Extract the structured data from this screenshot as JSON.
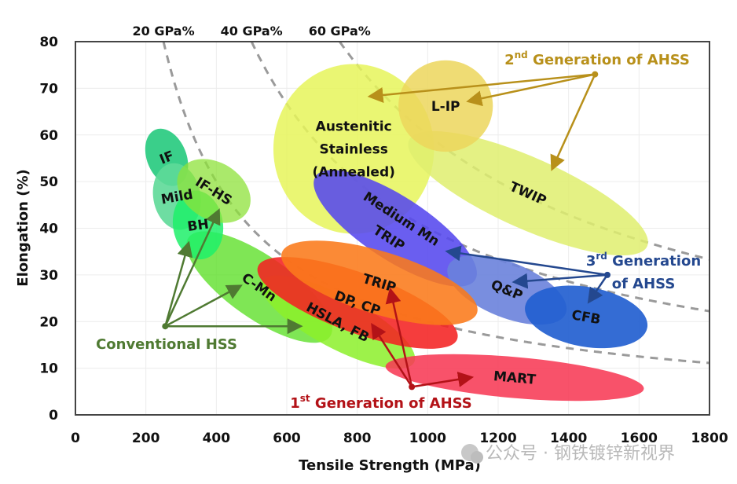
{
  "chart_data": {
    "type": "scatter",
    "title": "",
    "xlabel": "Tensile Strength (MPa)",
    "ylabel": "Elongation (%)",
    "xlim": [
      0,
      1800
    ],
    "ylim": [
      0,
      80
    ],
    "xticks": [
      "0",
      "200",
      "400",
      "600",
      "800",
      "1000",
      "1200",
      "1400",
      "1600",
      "1800"
    ],
    "yticks": [
      "0",
      "10",
      "20",
      "30",
      "40",
      "50",
      "60",
      "70",
      "80"
    ],
    "grid": true,
    "iso_curves": [
      {
        "label": "20 GPa%",
        "product": 20000
      },
      {
        "label": "40 GPa%",
        "product": 40000
      },
      {
        "label": "60 GPa%",
        "product": 60000
      }
    ],
    "regions": [
      {
        "name": "austenitic-stainless",
        "label": [
          "Austenitic",
          "Stainless",
          "(Annealed)"
        ],
        "ts": 790,
        "el": 57,
        "rts": 228,
        "rel": 18.2,
        "angle": 0,
        "color": "#e6f55a",
        "opacity": 0.85,
        "group": "2nd"
      },
      {
        "name": "twip",
        "label": [
          "TWIP"
        ],
        "ts": 1285,
        "el": 47.5,
        "rts": 370,
        "rel": 7.6,
        "angle": 24,
        "color": "#dfee6e",
        "opacity": 0.85,
        "group": "2nd"
      },
      {
        "name": "l-ip",
        "label": [
          "L-IP"
        ],
        "ts": 1051,
        "el": 66.2,
        "rts": 134,
        "rel": 9.8,
        "angle": 0,
        "color": "#ecd65c",
        "opacity": 0.85,
        "group": "2nd"
      },
      {
        "name": "medium-mn-trip",
        "label": [
          "Medium Mn",
          "TRIP"
        ],
        "ts": 908,
        "el": 40,
        "rts": 270,
        "rel": 6.8,
        "angle": 33,
        "color": "#5548ee",
        "opacity": 0.88,
        "group": "3rd"
      },
      {
        "name": "q-and-p",
        "label": [
          "Q&P"
        ],
        "ts": 1225,
        "el": 26.8,
        "rts": 180,
        "rel": 5.9,
        "angle": 22,
        "color": "#6a82dc",
        "opacity": 0.9,
        "group": "3rd"
      },
      {
        "name": "cfb",
        "label": [
          "CFB"
        ],
        "ts": 1450,
        "el": 21,
        "rts": 176,
        "rel": 6.4,
        "angle": 10,
        "color": "#2360d0",
        "opacity": 0.92,
        "group": "3rd"
      },
      {
        "name": "c-mn",
        "label": [
          "C-Mn"
        ],
        "ts": 522,
        "el": 27.4,
        "rts": 245,
        "rel": 6.7,
        "angle": 35,
        "color": "#5fe02a",
        "opacity": 0.8,
        "group": "conventional"
      },
      {
        "name": "hsla-fb",
        "label": [
          "HSLA, FB"
        ],
        "ts": 745,
        "el": 19.9,
        "rts": 245,
        "rel": 5.6,
        "angle": 28,
        "color": "#8cf02a",
        "opacity": 0.85,
        "group": "conventional"
      },
      {
        "name": "mart",
        "label": [
          "MART"
        ],
        "ts": 1247,
        "el": 8,
        "rts": 368,
        "rel": 4.4,
        "angle": 5,
        "color": "#f73a55",
        "opacity": 0.88,
        "group": "1st"
      },
      {
        "name": "dp-cp",
        "label": [
          "DP, CP"
        ],
        "ts": 801,
        "el": 24,
        "rts": 301,
        "rel": 6.4,
        "angle": 20,
        "color": "#f42222",
        "opacity": 0.88,
        "group": "1st"
      },
      {
        "name": "trip",
        "label": [
          "TRIP"
        ],
        "ts": 863,
        "el": 28.3,
        "rts": 290,
        "rel": 6.7,
        "angle": 17,
        "color": "#fb7a1a",
        "opacity": 0.88,
        "group": "1st"
      },
      {
        "name": "if",
        "label": [
          "IF"
        ],
        "ts": 259,
        "el": 55.2,
        "rts": 56,
        "rel": 6.4,
        "angle": -22,
        "color": "#2fcc84",
        "opacity": 0.95,
        "group": "conventional"
      },
      {
        "name": "mild",
        "label": [
          "Mild"
        ],
        "ts": 288,
        "el": 46.8,
        "rts": 67,
        "rel": 7.2,
        "angle": -10,
        "color": "#5ed998",
        "opacity": 0.9,
        "group": "conventional"
      },
      {
        "name": "bh",
        "label": [
          "BH"
        ],
        "ts": 348,
        "el": 40.7,
        "rts": 71,
        "rel": 7.4,
        "angle": -8,
        "color": "#1ef06a",
        "opacity": 0.85,
        "group": "conventional"
      },
      {
        "name": "if-hs",
        "label": [
          "IF-HS"
        ],
        "ts": 393,
        "el": 48,
        "rts": 112,
        "rel": 6.1,
        "angle": 32,
        "color": "#8ee23a",
        "opacity": 0.75,
        "group": "conventional"
      }
    ],
    "annotations": [
      {
        "name": "conventional-hss",
        "text": "Conventional HSS",
        "sup": "",
        "color": "#4f7a32",
        "origin": [
          255,
          19
        ],
        "targets": [
          [
            320,
            36.5
          ],
          [
            405,
            43.5
          ],
          [
            465,
            27.5
          ],
          [
            635,
            19
          ]
        ]
      },
      {
        "name": "first-gen-ahss",
        "text": " Generation of AHSS",
        "prefix": "1",
        "sup": "st",
        "color": "#b31217",
        "origin": [
          955,
          6
        ],
        "targets": [
          [
            895,
            26.5
          ],
          [
            845,
            19
          ],
          [
            1120,
            8
          ]
        ]
      },
      {
        "name": "second-gen-ahss",
        "text": " Generation of AHSS",
        "prefix": "2",
        "sup": "nd",
        "color": "#b8901a",
        "origin": [
          1475,
          73
        ],
        "targets": [
          [
            840,
            68.3
          ],
          [
            1120,
            67.3
          ],
          [
            1355,
            53
          ]
        ]
      },
      {
        "name": "third-gen-ahss",
        "text": [
          "Generation",
          "of AHSS"
        ],
        "prefix": "3",
        "sup": "rd",
        "color": "#24488f",
        "origin": [
          1510,
          30
        ],
        "targets": [
          [
            1060,
            35
          ],
          [
            1250,
            28.5
          ],
          [
            1460,
            24.5
          ]
        ]
      }
    ]
  },
  "watermark": "公众号 · 钢铁镀锌新视界"
}
